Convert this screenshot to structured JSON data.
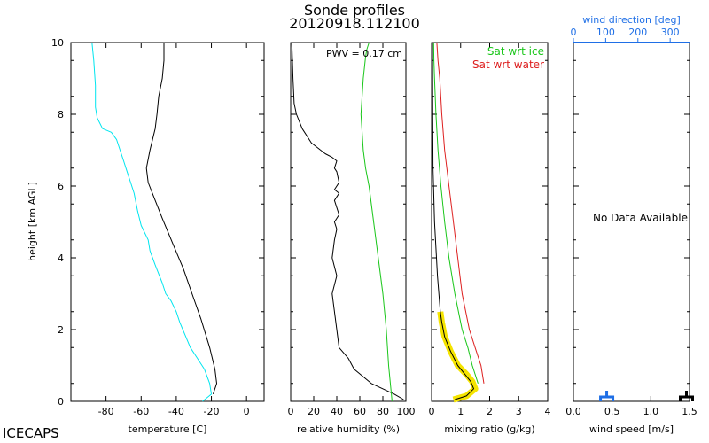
{
  "page": {
    "title": "Sonde profiles",
    "subtitle": "20120918.112100",
    "footer": "ICECAPS",
    "shared_ylabel": "height [km AGL]",
    "shared_y_ticks": [
      "0",
      "2",
      "4",
      "6",
      "8",
      "10"
    ]
  },
  "colors": {
    "cyan": "#00e5ee",
    "black": "#000000",
    "green": "#19c619",
    "red": "#dd1f1f",
    "yellow": "#f5e400",
    "blue": "#1f6fe6"
  },
  "chart_data": [
    {
      "type": "line",
      "id": "temperature",
      "xlabel": "temperature [C]",
      "xlim": [
        -100,
        10
      ],
      "ylim": [
        0,
        10
      ],
      "x_ticks": [
        "-80",
        "-60",
        "-40",
        "-20",
        "0"
      ],
      "series": [
        {
          "color": "cyan",
          "x": [
            -25,
            -20,
            -21,
            -24,
            -28,
            -32,
            -38,
            -40,
            -43,
            -46,
            -48,
            -52,
            -55,
            -56,
            -60,
            -62,
            -64,
            -66,
            -68,
            -70,
            -72,
            -74,
            -77,
            -82,
            -85,
            -86,
            -86,
            -87,
            -88
          ],
          "y": [
            0.0,
            0.2,
            0.5,
            0.9,
            1.2,
            1.5,
            2.2,
            2.5,
            2.8,
            3.0,
            3.3,
            3.8,
            4.2,
            4.5,
            4.9,
            5.3,
            5.8,
            6.1,
            6.4,
            6.7,
            7.0,
            7.3,
            7.5,
            7.6,
            7.9,
            8.2,
            8.8,
            9.5,
            10.0
          ]
        },
        {
          "color": "black",
          "x": [
            -19,
            -17,
            -18,
            -21,
            -26,
            -31,
            -36,
            -42,
            -48,
            -52,
            -56,
            -57,
            -55,
            -52,
            -51,
            -50,
            -48,
            -47,
            -47
          ],
          "y": [
            0.2,
            0.5,
            0.9,
            1.5,
            2.3,
            3.0,
            3.7,
            4.4,
            5.1,
            5.6,
            6.1,
            6.5,
            7.0,
            7.6,
            8.0,
            8.5,
            9.0,
            9.5,
            10.0
          ]
        }
      ]
    },
    {
      "type": "line",
      "id": "relative_humidity",
      "xlabel": "relative humidity (%)",
      "xlim": [
        0,
        100
      ],
      "ylim": [
        0,
        10
      ],
      "x_ticks": [
        "0",
        "20",
        "40",
        "60",
        "80",
        "100"
      ],
      "annotation": "PWV = 0.17 cm",
      "series": [
        {
          "color": "black",
          "x": [
            98,
            90,
            70,
            55,
            50,
            42,
            40,
            38,
            36,
            40,
            36,
            38,
            40,
            38,
            42,
            40,
            38,
            42,
            38,
            42,
            40,
            38,
            40,
            36,
            30,
            18,
            10,
            5,
            3,
            2,
            1
          ],
          "y": [
            0.05,
            0.2,
            0.5,
            0.9,
            1.2,
            1.5,
            2.0,
            2.5,
            3.0,
            3.5,
            4.0,
            4.5,
            4.8,
            5.0,
            5.2,
            5.4,
            5.6,
            5.8,
            5.9,
            6.1,
            6.4,
            6.5,
            6.7,
            6.8,
            6.9,
            7.2,
            7.6,
            8.0,
            8.3,
            9.0,
            10.0
          ]
        },
        {
          "color": "green",
          "x": [
            88,
            85,
            83,
            80,
            76,
            72,
            68,
            65,
            63,
            62,
            61,
            62,
            63,
            64,
            65,
            66,
            68
          ],
          "y": [
            0.0,
            1.0,
            2.0,
            3.0,
            4.0,
            5.0,
            6.0,
            6.5,
            7.0,
            7.5,
            8.0,
            8.5,
            9.0,
            9.3,
            9.6,
            9.8,
            10.0
          ]
        }
      ]
    },
    {
      "type": "line",
      "id": "mixing_ratio",
      "xlabel": "mixing ratio (g/kg)",
      "xlim": [
        0,
        4
      ],
      "ylim": [
        0,
        10
      ],
      "x_ticks": [
        "0",
        "1",
        "2",
        "3",
        "4"
      ],
      "legend": [
        {
          "label": "Sat wrt ice",
          "color": "green"
        },
        {
          "label": "Sat wrt water",
          "color": "red"
        }
      ],
      "series": [
        {
          "color": "red",
          "x": [
            1.8,
            1.7,
            1.5,
            1.3,
            1.05,
            0.9,
            0.75,
            0.6,
            0.45,
            0.35,
            0.28,
            0.22,
            0.18
          ],
          "y": [
            0.5,
            1.0,
            1.5,
            2.0,
            3.0,
            4.0,
            5.0,
            6.0,
            7.0,
            8.0,
            9.0,
            9.5,
            10.0
          ]
        },
        {
          "color": "green",
          "x": [
            1.6,
            1.4,
            1.25,
            1.05,
            0.8,
            0.6,
            0.45,
            0.32,
            0.22,
            0.15,
            0.1,
            0.08,
            0.07
          ],
          "y": [
            0.5,
            1.0,
            1.5,
            2.0,
            3.0,
            4.0,
            5.0,
            6.0,
            7.0,
            8.0,
            9.0,
            9.5,
            10.0
          ]
        },
        {
          "color": "yellow",
          "x": [
            0.75,
            1.2,
            1.5,
            1.4,
            1.2,
            0.9,
            0.65,
            0.45,
            0.35,
            0.3
          ],
          "y": [
            0.05,
            0.15,
            0.35,
            0.55,
            0.75,
            1.0,
            1.4,
            1.8,
            2.2,
            2.5
          ]
        },
        {
          "color": "black",
          "x": [
            0.8,
            1.2,
            1.45,
            1.35,
            1.15,
            0.9,
            0.65,
            0.45,
            0.35,
            0.3,
            0.2,
            0.1,
            0.05,
            0.04,
            0.03
          ],
          "y": [
            0.05,
            0.15,
            0.35,
            0.55,
            0.75,
            1.0,
            1.4,
            1.8,
            2.2,
            2.5,
            3.5,
            5.0,
            6.5,
            8.0,
            10.0
          ]
        }
      ]
    },
    {
      "type": "line",
      "id": "wind",
      "xlabel": "wind speed [m/s]",
      "xlim": [
        0,
        1.5
      ],
      "ylim": [
        0,
        10
      ],
      "x_ticks": [
        "0.0",
        "0.5",
        "1.0",
        "1.5"
      ],
      "top_axis_label": "wind direction [deg]",
      "top_axis_ticks": [
        "0",
        "100",
        "200",
        "300"
      ],
      "top_xlim": [
        0,
        360
      ],
      "no_data_text": "No Data Available",
      "markers": [
        {
          "color": "blue",
          "x": 0.43
        },
        {
          "color": "black",
          "x": 1.46
        }
      ]
    }
  ]
}
